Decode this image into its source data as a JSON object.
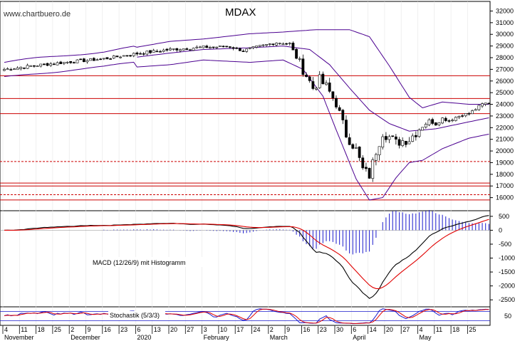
{
  "watermark": "www.chartbuero.de",
  "chart_data": {
    "type": "candlestick",
    "title": "MDAX",
    "price": {
      "ylim": [
        15000,
        32700
      ],
      "yticks": [
        16000,
        17000,
        18000,
        19000,
        20000,
        21000,
        22000,
        23000,
        24000,
        25000,
        26000,
        27000,
        28000,
        29000,
        30000,
        31000,
        32000
      ],
      "ytick_labels": [
        "16000",
        "17000",
        "18000",
        "19000",
        "20000",
        "21000",
        "22000",
        "23000",
        "24000",
        "25000",
        "26000",
        "27000",
        "28000",
        "29000",
        "30000",
        "31000",
        "32000"
      ],
      "hlines": [
        {
          "value": 26450,
          "style": "solid"
        },
        {
          "value": 24500,
          "style": "solid"
        },
        {
          "value": 23200,
          "style": "solid"
        },
        {
          "value": 19100,
          "style": "dashed"
        },
        {
          "value": 17250,
          "style": "solid"
        },
        {
          "value": 17000,
          "style": "solid"
        },
        {
          "value": 16250,
          "style": "dashed"
        },
        {
          "value": 15800,
          "style": "solid"
        }
      ],
      "close_anchors": [
        [
          0,
          27000
        ],
        [
          10,
          27350
        ],
        [
          20,
          27650
        ],
        [
          30,
          27900
        ],
        [
          40,
          28350
        ],
        [
          50,
          28700
        ],
        [
          60,
          28900
        ],
        [
          68,
          28950
        ],
        [
          72,
          28600
        ],
        [
          76,
          28900
        ],
        [
          82,
          29300
        ],
        [
          86,
          29200
        ],
        [
          88,
          28000
        ],
        [
          91,
          26500
        ],
        [
          93,
          25400
        ],
        [
          95,
          26100
        ],
        [
          97,
          25500
        ],
        [
          100,
          24100
        ],
        [
          103,
          21400
        ],
        [
          106,
          20100
        ],
        [
          108,
          18400
        ],
        [
          110,
          17900
        ],
        [
          112,
          20000
        ],
        [
          114,
          21600
        ],
        [
          116,
          21200
        ],
        [
          118,
          20700
        ],
        [
          120,
          20900
        ],
        [
          122,
          21000
        ],
        [
          124,
          21600
        ],
        [
          126,
          22100
        ],
        [
          128,
          22600
        ],
        [
          130,
          22300
        ],
        [
          132,
          22800
        ],
        [
          134,
          22600
        ],
        [
          136,
          22900
        ],
        [
          138,
          23100
        ],
        [
          140,
          23200
        ],
        [
          142,
          23600
        ],
        [
          144,
          24000
        ],
        [
          146,
          24150
        ]
      ],
      "bollinger": {
        "period": 20,
        "k": 2
      },
      "bollinger_upper_anchors": [
        [
          40,
          28900
        ],
        [
          50,
          29400
        ],
        [
          60,
          29600
        ],
        [
          74,
          30050
        ],
        [
          84,
          30200
        ],
        [
          94,
          30400
        ],
        [
          104,
          30400
        ],
        [
          110,
          29800
        ],
        [
          116,
          27300
        ],
        [
          122,
          24600
        ],
        [
          126,
          23700
        ],
        [
          132,
          24200
        ],
        [
          140,
          24000
        ],
        [
          147,
          24000
        ]
      ],
      "bollinger_mid_anchors": [
        [
          40,
          28050
        ],
        [
          50,
          28400
        ],
        [
          60,
          28700
        ],
        [
          74,
          28850
        ],
        [
          84,
          29000
        ],
        [
          92,
          28700
        ],
        [
          98,
          27400
        ],
        [
          104,
          25400
        ],
        [
          110,
          23500
        ],
        [
          116,
          22350
        ],
        [
          122,
          21700
        ],
        [
          130,
          21900
        ],
        [
          140,
          22500
        ],
        [
          147,
          22900
        ]
      ],
      "bollinger_lower_anchors": [
        [
          40,
          27200
        ],
        [
          50,
          27400
        ],
        [
          60,
          27800
        ],
        [
          74,
          27600
        ],
        [
          84,
          27800
        ],
        [
          90,
          27000
        ],
        [
          96,
          24700
        ],
        [
          100,
          21800
        ],
        [
          106,
          17600
        ],
        [
          110,
          15800
        ],
        [
          114,
          16000
        ],
        [
          118,
          17700
        ],
        [
          122,
          19000
        ],
        [
          126,
          19200
        ],
        [
          132,
          20200
        ],
        [
          140,
          21100
        ],
        [
          147,
          21500
        ]
      ]
    },
    "macd": {
      "label": "MACD (12/26/9) mit Histogramm",
      "ylim": [
        -2700,
        650
      ],
      "yticks": [
        500,
        0,
        -500,
        -1000,
        -1500,
        -2000,
        -2500
      ],
      "ytick_labels": [
        "500",
        "0",
        "-500",
        "-1000",
        "-1500",
        "-2000",
        "-2500"
      ]
    },
    "stochastic": {
      "label": "Stochastik (5/3/3)",
      "ylim": [
        0,
        100
      ],
      "yticks": [
        50
      ],
      "ytick_labels": [
        "50"
      ],
      "levels": [
        80,
        20
      ]
    },
    "x_axis": {
      "day_labels": [
        {
          "index": 0,
          "label": "4"
        },
        {
          "index": 5,
          "label": "11"
        },
        {
          "index": 10,
          "label": "18"
        },
        {
          "index": 15,
          "label": "25"
        },
        {
          "index": 20,
          "label": "2"
        },
        {
          "index": 25,
          "label": "9"
        },
        {
          "index": 30,
          "label": "16"
        },
        {
          "index": 35,
          "label": "23"
        },
        {
          "index": 40,
          "label": "6"
        },
        {
          "index": 45,
          "label": "13"
        },
        {
          "index": 50,
          "label": "20"
        },
        {
          "index": 55,
          "label": "27"
        },
        {
          "index": 60,
          "label": "3"
        },
        {
          "index": 65,
          "label": "10"
        },
        {
          "index": 70,
          "label": "17"
        },
        {
          "index": 75,
          "label": "24"
        },
        {
          "index": 80,
          "label": "2"
        },
        {
          "index": 85,
          "label": "9"
        },
        {
          "index": 90,
          "label": "16"
        },
        {
          "index": 95,
          "label": "23"
        },
        {
          "index": 100,
          "label": "30"
        },
        {
          "index": 105,
          "label": "6"
        },
        {
          "index": 110,
          "label": "14"
        },
        {
          "index": 115,
          "label": "20"
        },
        {
          "index": 120,
          "label": "27"
        },
        {
          "index": 125,
          "label": "4"
        },
        {
          "index": 130,
          "label": "11"
        },
        {
          "index": 135,
          "label": "18"
        },
        {
          "index": 140,
          "label": "25"
        }
      ],
      "month_labels": [
        {
          "index": 0,
          "label": "November"
        },
        {
          "index": 20,
          "label": "December"
        },
        {
          "index": 40,
          "label": "2020"
        },
        {
          "index": 60,
          "label": "February"
        },
        {
          "index": 80,
          "label": "March"
        },
        {
          "index": 105,
          "label": "April"
        },
        {
          "index": 125,
          "label": "May"
        }
      ]
    },
    "colors": {
      "up": "#ffffff",
      "down": "#000000",
      "bollinger": "#4b0090",
      "macd_line": "#000000",
      "signal_line": "#e00000",
      "histogram": "#1a1acc",
      "hline": "#cc0000",
      "stoch_k": "#1a1acc",
      "stoch_d": "#e00000",
      "level_line": "#1a1acc"
    }
  }
}
